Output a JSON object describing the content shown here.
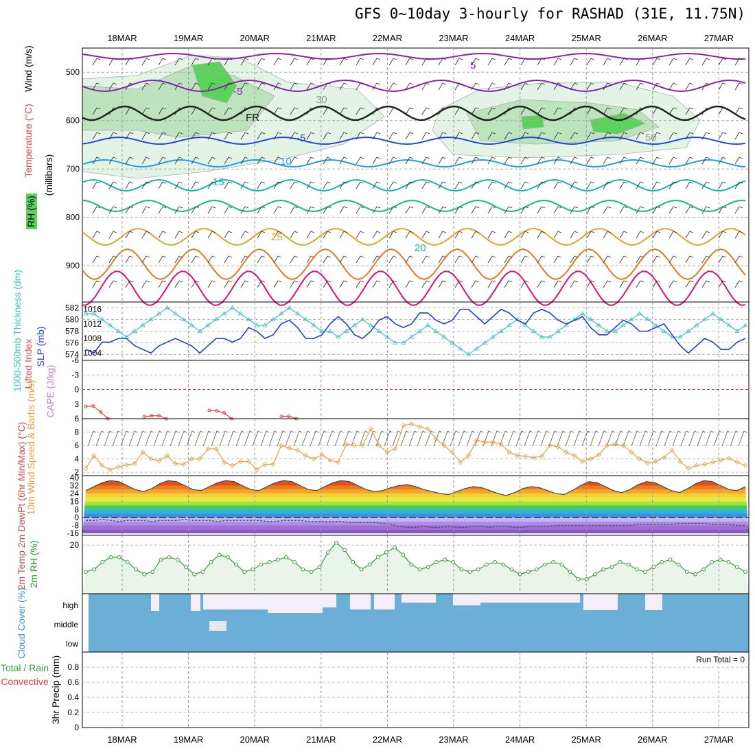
{
  "title": "GFS 0~10day 3-hourly for RASHAD (31E, 11.75N)",
  "dates": [
    "18MAR",
    "19MAR",
    "20MAR",
    "21MAR",
    "22MAR",
    "23MAR",
    "24MAR",
    "25MAR",
    "26MAR",
    "27MAR"
  ],
  "colors": {
    "purple": "#8a1fb8",
    "blue": "#1f45d6",
    "skyblue": "#1e9ee6",
    "teal": "#14b4b0",
    "green": "#17b887",
    "gold": "#dba428",
    "orange": "#e07a1e",
    "magenta": "#d8107a",
    "rh_light": "#e4f4e4",
    "rh_mid": "#bde3bd",
    "rh_dark": "#5bd35b",
    "slp": "#1f3fcf",
    "thick": "#3cc0c4",
    "li": "#e04040",
    "wind": "#e4a040",
    "cloud": "#6baed6",
    "cloud_gap": "#f3eef7",
    "rh2m": "#3a9a3a"
  },
  "panels": {
    "upper": {
      "ylabel": "(millibars)",
      "label_wind": "Wind (m/s)",
      "label_temp": "Temperature (°C)",
      "label_rh": "RH (%)",
      "yticks": [
        500,
        600,
        700,
        800,
        900
      ],
      "contour_labels": [
        {
          "text": "5",
          "color": "purple"
        },
        {
          "text": "-5",
          "color": "purple"
        },
        {
          "text": "FR",
          "color": "black"
        },
        {
          "text": "-5",
          "color": "blue"
        },
        {
          "text": "10",
          "color": "skyblue"
        },
        {
          "text": "15",
          "color": "teal"
        },
        {
          "text": "20",
          "color": "green"
        },
        {
          "text": "25",
          "color": "gold"
        },
        {
          "text": "30",
          "color": "gray"
        },
        {
          "text": "50",
          "color": "gray"
        }
      ]
    },
    "slp": {
      "label_thick": "1000-500mb Thickness (dm)",
      "label_slp": "SLP (mb)",
      "yticks_left": [
        574,
        576,
        578,
        580,
        582
      ],
      "yticks_right": [
        1004,
        1008,
        1012,
        1016
      ]
    },
    "li": {
      "label_li": "Lifted Index",
      "label_cape": "CAPE (J/kg)",
      "yticks": [
        -6,
        -3,
        0,
        3,
        6
      ]
    },
    "wind": {
      "label": "10m Wind Speed & Barbs (m/s)",
      "yticks": [
        2,
        4,
        6,
        8
      ]
    },
    "temp": {
      "label": "2m Temp 2m DewPt (6hr Min/Max) (°C)",
      "yticks": [
        40,
        32,
        24,
        16,
        8,
        0,
        -8,
        -16
      ]
    },
    "rh": {
      "label": "2m RH (%)",
      "yticks": [
        20
      ]
    },
    "cloud": {
      "label": "Cloud Cover (%)",
      "levels": [
        "high",
        "middle",
        "low"
      ]
    },
    "precip": {
      "label_total": "Total / Rain",
      "label_conv": "Convective",
      "label_axis": "3hr Precip (mm)",
      "yticks": [
        0,
        0.2,
        0.4,
        0.6,
        0.8
      ],
      "run_total": "Run Total = 0"
    }
  },
  "chart_data": [
    {
      "type": "line",
      "name": "slp",
      "ylabel": "SLP (mb)",
      "ylim": [
        1002,
        1018
      ],
      "values": [
        1005,
        1004,
        1007,
        1007,
        1008,
        1008,
        1006,
        1005,
        1004,
        1006,
        1007,
        1008,
        1007,
        1006,
        1004,
        1006,
        1008,
        1008,
        1007,
        1008,
        1011,
        1010,
        1008,
        1009,
        1012,
        1013,
        1011,
        1008,
        1008,
        1009,
        1012,
        1014,
        1012,
        1009,
        1008,
        1010,
        1013,
        1014,
        1012,
        1011,
        1012,
        1015,
        1015,
        1013,
        1012,
        1013,
        1016,
        1016,
        1014,
        1012,
        1014,
        1016,
        1015,
        1013,
        1012,
        1015,
        1016,
        1015,
        1013,
        1012,
        1013,
        1014,
        1011,
        1009,
        1009,
        1011,
        1013,
        1012,
        1010,
        1010,
        1011,
        1012,
        1009,
        1006,
        1004,
        1006,
        1008,
        1007,
        1005,
        1005,
        1007,
        1008
      ]
    },
    {
      "type": "line",
      "name": "thickness",
      "ylabel": "1000-500mb Thickness (dm)",
      "ylim": [
        573,
        583
      ],
      "values": [
        581,
        581,
        580,
        579,
        578,
        577,
        578,
        579,
        580,
        581,
        582,
        581,
        580,
        579,
        578,
        579,
        580,
        581,
        582,
        581,
        580,
        579,
        579,
        580,
        581,
        582,
        581,
        580,
        579,
        578,
        578,
        577,
        578,
        579,
        580,
        579,
        578,
        577,
        576,
        576,
        577,
        578,
        579,
        578,
        577,
        576,
        575,
        574,
        575,
        576,
        577,
        578,
        579,
        580,
        579,
        578,
        577,
        577,
        578,
        579,
        580,
        581,
        580,
        579,
        578,
        578,
        579,
        580,
        581,
        580,
        579,
        578,
        577,
        577,
        578,
        579,
        580,
        581,
        580,
        579,
        578,
        579
      ]
    },
    {
      "type": "line",
      "name": "lifted_index",
      "ylabel": "Lifted Index",
      "ylim": [
        -6,
        6
      ],
      "values": [
        3.5,
        3.4,
        4.6,
        6,
        6,
        6,
        6,
        6,
        5.6,
        5.4,
        5.4,
        6,
        6,
        6,
        6,
        6,
        4.3,
        4.4,
        4.8,
        6,
        6,
        6,
        6,
        6,
        5.5,
        5.5,
        6,
        6,
        6,
        6
      ]
    },
    {
      "type": "line",
      "name": "10m_wind_speed",
      "ylabel": "(m/s)",
      "ylim": [
        1.5,
        10
      ],
      "values": [
        2.6,
        4.5,
        3.0,
        2.4,
        2.8,
        3.1,
        3.3,
        5.0,
        4.0,
        3.7,
        4.5,
        3.3,
        3.2,
        4.0,
        4.0,
        5.5,
        5.5,
        3.5,
        3.0,
        3.6,
        3.6,
        2.4,
        3.2,
        3.2,
        6.0,
        5.6,
        5.3,
        4.5,
        4.0,
        4.6,
        3.8,
        3.5,
        6.2,
        6.0,
        6.0,
        8.5,
        6.0,
        5.0,
        5.5,
        9.0,
        9.2,
        8.8,
        8.5,
        7.0,
        6.0,
        5.0,
        3.5,
        4.5,
        6.8,
        6.5,
        6.5,
        6.2,
        5.0,
        4.5,
        4.4,
        4.2,
        4.4,
        6.0,
        5.8,
        5.0,
        4.5,
        3.6,
        4.0,
        4.6,
        6.0,
        6.2,
        6.0,
        5.0,
        4.0,
        3.4,
        3.6,
        4.2,
        5.3,
        3.6,
        2.6,
        3.0,
        3.2,
        3.5,
        3.8,
        4.1,
        3.5,
        3.0
      ]
    },
    {
      "type": "line",
      "name": "2m_temp",
      "ylabel": "(°C)",
      "ylim": [
        -18,
        42
      ],
      "values": [
        27,
        31,
        35,
        37,
        36,
        32,
        28,
        26,
        29,
        34,
        37,
        36,
        32,
        28,
        27,
        31,
        35,
        37,
        36,
        32,
        28,
        27,
        31,
        35,
        37,
        36,
        32,
        28,
        27,
        31,
        35,
        37,
        36,
        32,
        28,
        26,
        27,
        30,
        32,
        33,
        31,
        28,
        26,
        24,
        23,
        26,
        29,
        31,
        30,
        27,
        24,
        22,
        25,
        29,
        31,
        30,
        27,
        24,
        23,
        27,
        32,
        36,
        35,
        31,
        27,
        25,
        28,
        33,
        36,
        35,
        31,
        27,
        25,
        29,
        34,
        37,
        36,
        32,
        28,
        27,
        31
      ]
    },
    {
      "type": "line",
      "name": "2m_dewpoint",
      "ylabel": "(°C)",
      "ylim": [
        -18,
        42
      ],
      "values": [
        -3,
        -3,
        -2,
        -3,
        -4,
        -3,
        -3,
        -3,
        -4,
        -3,
        -3,
        -3,
        -2,
        -3,
        -3,
        -3,
        -4,
        -3,
        -3,
        -3,
        -3,
        -3,
        -4,
        -4,
        -3,
        -3,
        -3,
        -4,
        -4,
        -4,
        -4,
        -4,
        -5,
        -5,
        -5,
        -5,
        -6,
        -7,
        -9,
        -10,
        -10,
        -9,
        -10,
        -10,
        -9,
        -10,
        -10,
        -9,
        -9,
        -10,
        -9,
        -9,
        -10,
        -10,
        -9,
        -9,
        -9,
        -8,
        -8,
        -8,
        -8,
        -8,
        -8,
        -8,
        -8,
        -8,
        -8,
        -7,
        -7,
        -7,
        -7,
        -7,
        -6,
        -6,
        -6,
        -6,
        -7,
        -7,
        -7,
        -8,
        -8
      ]
    },
    {
      "type": "line",
      "name": "2m_rh",
      "ylabel": "(%)",
      "ylim": [
        0,
        24
      ],
      "values": [
        9,
        10,
        13,
        15,
        15,
        13,
        10,
        8,
        9,
        14,
        15,
        14,
        11,
        8,
        9,
        13,
        16,
        15,
        12,
        9,
        10,
        12,
        13,
        14,
        15,
        13,
        10,
        9,
        11,
        17,
        21,
        18,
        13,
        10,
        12,
        15,
        17,
        19,
        16,
        12,
        10,
        11,
        13,
        14,
        13,
        10,
        9,
        10,
        12,
        13,
        12,
        10,
        8,
        9,
        10,
        12,
        13,
        12,
        9,
        6,
        6,
        8,
        10,
        11,
        13,
        12,
        10,
        9,
        11,
        13,
        14,
        12,
        9,
        8,
        10,
        13,
        14,
        13,
        11,
        9
      ]
    },
    {
      "type": "bar",
      "name": "3hr_precip",
      "ylabel": "3hr Precip (mm)",
      "ylim": [
        0,
        1
      ],
      "values": [
        0,
        0,
        0,
        0,
        0,
        0,
        0,
        0,
        0,
        0
      ]
    }
  ]
}
